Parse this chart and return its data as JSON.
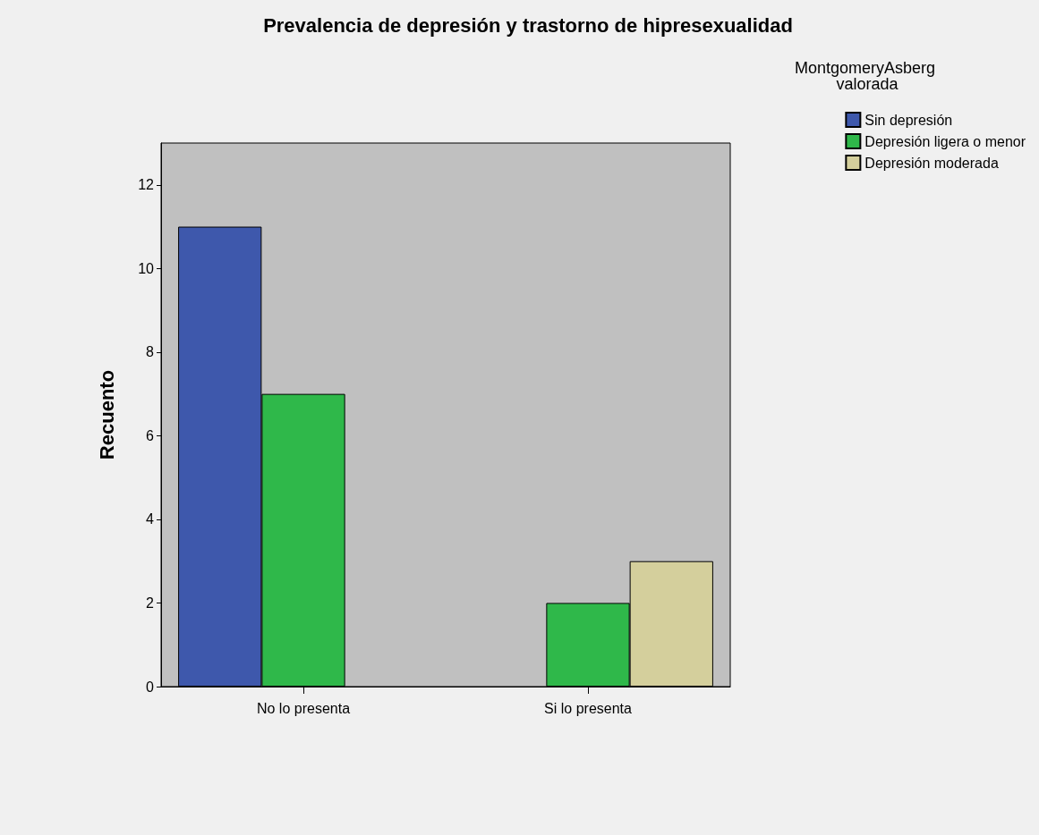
{
  "chart_data": {
    "type": "bar",
    "title": "Prevalencia de depresión y trastorno de hipresexualidad",
    "ylabel": "Recuento",
    "legend_title": "MontgomeryAsberg valorada",
    "categories": [
      "No lo presenta",
      "Si lo presenta"
    ],
    "series": [
      {
        "name": "Sin depresión",
        "color": "#3e58ac",
        "values": [
          11,
          null
        ]
      },
      {
        "name": "Depresión ligera o menor",
        "color": "#2fb84a",
        "values": [
          7,
          2
        ]
      },
      {
        "name": "Depresión moderada",
        "color": "#d4cf9c",
        "values": [
          null,
          3
        ]
      }
    ],
    "ylim": [
      0,
      13
    ],
    "yticks": [
      0,
      2,
      4,
      6,
      8,
      10,
      12
    ],
    "grid": false,
    "legend": "top right"
  }
}
